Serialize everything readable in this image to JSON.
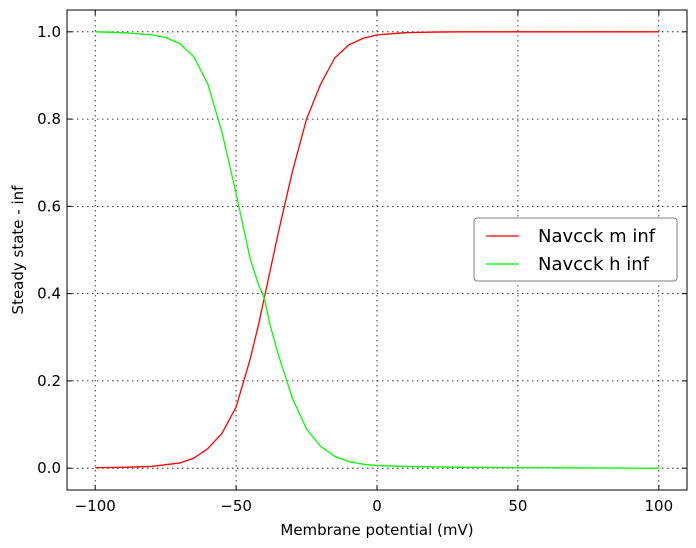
{
  "chart_data": {
    "type": "line",
    "title": "",
    "xlabel": "Membrane potential (mV)",
    "ylabel": "Steady state - inf",
    "xlim": [
      -110,
      110
    ],
    "ylim": [
      -0.05,
      1.05
    ],
    "xticks": [
      -100,
      -50,
      0,
      50,
      100
    ],
    "xtick_labels": [
      "−100",
      "−50",
      "0",
      "50",
      "100"
    ],
    "yticks": [
      0.0,
      0.2,
      0.4,
      0.6,
      0.8,
      1.0
    ],
    "ytick_labels": [
      "0.0",
      "0.2",
      "0.4",
      "0.6",
      "0.8",
      "1.0"
    ],
    "grid": true,
    "legend_position": "center-right",
    "series": [
      {
        "name": "Navcck m inf",
        "color": "#ff0000",
        "x": [
          -100,
          -90,
          -80,
          -70,
          -65,
          -60,
          -55,
          -50,
          -45,
          -42,
          -40,
          -38,
          -35,
          -30,
          -25,
          -20,
          -15,
          -10,
          -5,
          0,
          10,
          20,
          30,
          50,
          75,
          100
        ],
        "y": [
          0.001,
          0.002,
          0.004,
          0.012,
          0.023,
          0.045,
          0.08,
          0.14,
          0.25,
          0.33,
          0.39,
          0.45,
          0.54,
          0.68,
          0.8,
          0.88,
          0.94,
          0.97,
          0.985,
          0.993,
          0.998,
          0.9995,
          1.0,
          1.0,
          1.0,
          1.0
        ]
      },
      {
        "name": "Navcck h inf",
        "color": "#00ff00",
        "x": [
          -100,
          -90,
          -80,
          -75,
          -70,
          -65,
          -60,
          -55,
          -50,
          -45,
          -42,
          -40,
          -38,
          -35,
          -30,
          -25,
          -20,
          -15,
          -10,
          -5,
          0,
          10,
          20,
          30,
          50,
          75,
          100
        ],
        "y": [
          1.0,
          0.998,
          0.993,
          0.987,
          0.973,
          0.943,
          0.88,
          0.77,
          0.63,
          0.48,
          0.42,
          0.39,
          0.33,
          0.26,
          0.16,
          0.09,
          0.05,
          0.027,
          0.015,
          0.009,
          0.006,
          0.004,
          0.003,
          0.002,
          0.001,
          0.0005,
          0.0
        ]
      }
    ]
  }
}
